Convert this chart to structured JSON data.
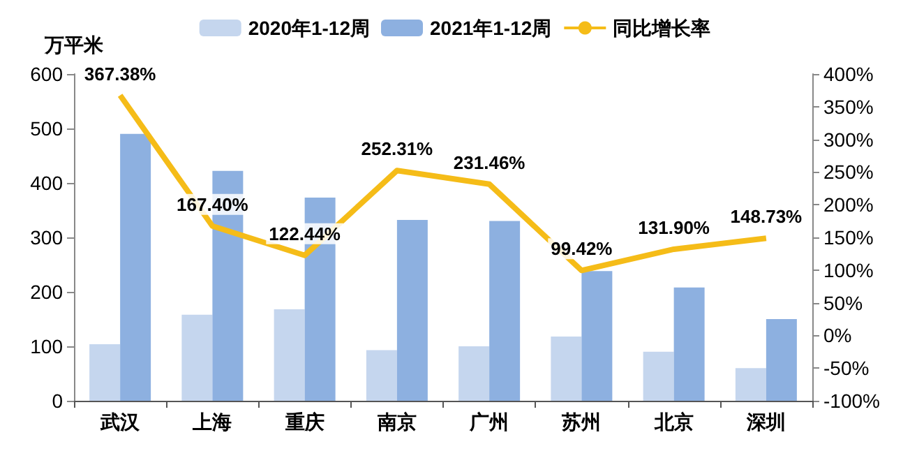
{
  "chart_data": {
    "type": "bar",
    "ylabel": "万平米",
    "categories": [
      "武汉",
      "上海",
      "重庆",
      "南京",
      "广州",
      "苏州",
      "北京",
      "深圳"
    ],
    "series": [
      {
        "name": "2020年1-12周",
        "color": "#c5d6ee",
        "values": [
          104,
          158,
          168,
          93,
          100,
          118,
          90,
          60
        ]
      },
      {
        "name": "2021年1-12周",
        "color": "#8db0e0",
        "values": [
          490,
          422,
          373,
          332,
          330,
          238,
          208,
          150
        ]
      },
      {
        "name": "同比增长率",
        "type": "line",
        "axis": "y2",
        "color": "#f5bc18",
        "values": [
          367.38,
          167.4,
          122.44,
          252.31,
          231.46,
          99.42,
          131.9,
          148.73
        ],
        "value_labels": [
          "367.38%",
          "167.40%",
          "122.44%",
          "252.31%",
          "231.46%",
          "99.42%",
          "131.90%",
          "148.73%"
        ],
        "marker": "none"
      }
    ],
    "ylim": [
      0,
      600
    ],
    "yticks": [
      0,
      100,
      200,
      300,
      400,
      500,
      600
    ],
    "y2lim": [
      -100,
      400
    ],
    "y2ticks": [
      {
        "value": -100,
        "label": "-100%"
      },
      {
        "value": -50,
        "label": "-50%"
      },
      {
        "value": 0,
        "label": "0%"
      },
      {
        "value": 50,
        "label": "50%"
      },
      {
        "value": 100,
        "label": "100%"
      },
      {
        "value": 150,
        "label": "150%"
      },
      {
        "value": 200,
        "label": "200%"
      },
      {
        "value": 250,
        "label": "250%"
      },
      {
        "value": 300,
        "label": "300%"
      },
      {
        "value": 350,
        "label": "350%"
      },
      {
        "value": 400,
        "label": "400%"
      }
    ],
    "grid": false,
    "legend": "top"
  }
}
